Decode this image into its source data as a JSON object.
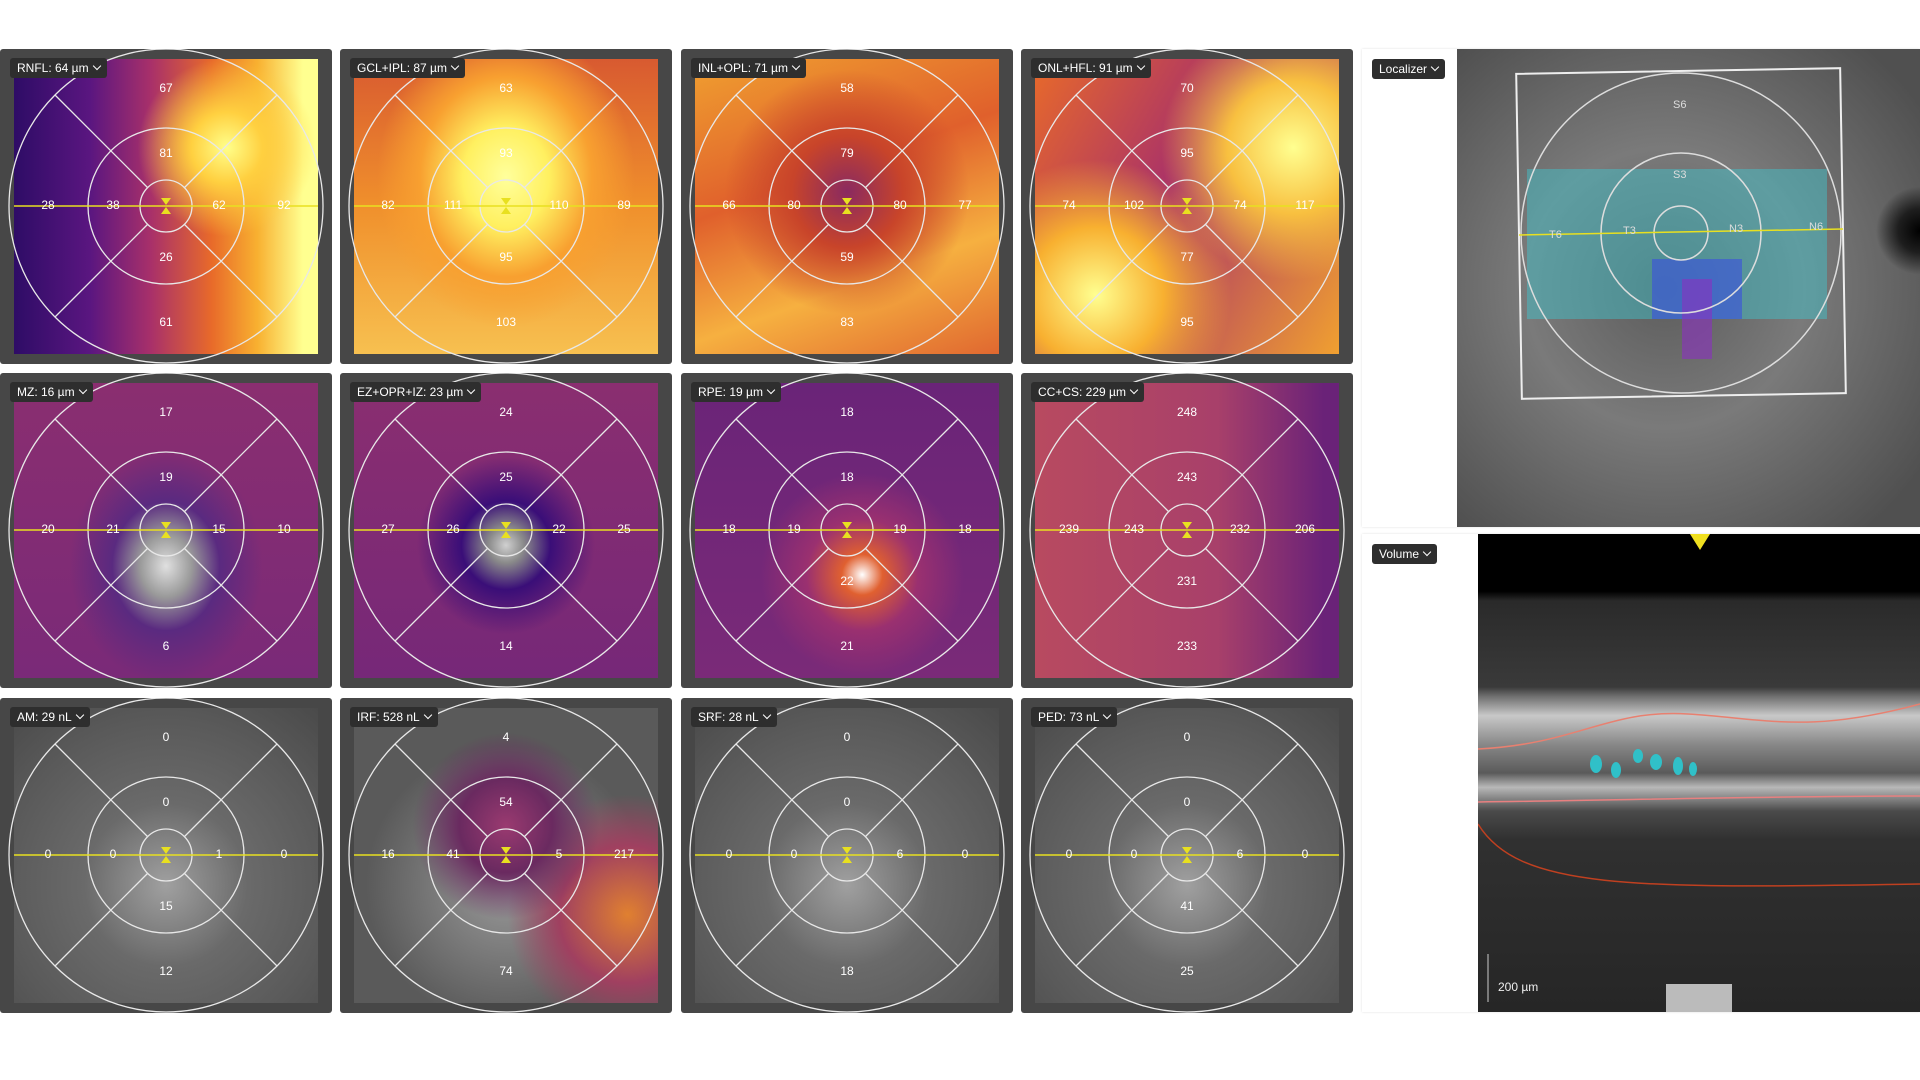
{
  "panels": [
    {
      "label": "RNFL: 64 µm",
      "sectors": {
        "top_outer": "67",
        "top_inner": "81",
        "left_outer": "28",
        "left_inner": "38",
        "right_inner": "62",
        "right_outer": "92",
        "bottom_inner": "26",
        "bottom_outer": "61"
      }
    },
    {
      "label": "GCL+IPL: 87 µm",
      "sectors": {
        "top_outer": "63",
        "top_inner": "93",
        "left_outer": "82",
        "left_inner": "111",
        "right_inner": "110",
        "right_outer": "89",
        "bottom_inner": "95",
        "bottom_outer": "103"
      }
    },
    {
      "label": "INL+OPL: 71 µm",
      "sectors": {
        "top_outer": "58",
        "top_inner": "79",
        "left_outer": "66",
        "left_inner": "80",
        "right_inner": "80",
        "right_outer": "77",
        "bottom_inner": "59",
        "bottom_outer": "83"
      }
    },
    {
      "label": "ONL+HFL: 91 µm",
      "sectors": {
        "top_outer": "70",
        "top_inner": "95",
        "left_outer": "74",
        "left_inner": "102",
        "right_inner": "74",
        "right_outer": "117",
        "bottom_inner": "77",
        "bottom_outer": "95"
      }
    },
    {
      "label": "MZ: 16 µm",
      "sectors": {
        "top_outer": "17",
        "top_inner": "19",
        "left_outer": "20",
        "left_inner": "21",
        "right_inner": "15",
        "right_outer": "10",
        "bottom_outer": "6"
      }
    },
    {
      "label": "EZ+OPR+IZ: 23 µm",
      "sectors": {
        "top_outer": "24",
        "top_inner": "25",
        "left_outer": "27",
        "left_inner": "26",
        "right_inner": "22",
        "right_outer": "25",
        "bottom_outer": "14"
      }
    },
    {
      "label": "RPE: 19 µm",
      "sectors": {
        "top_outer": "18",
        "top_inner": "18",
        "left_outer": "18",
        "left_inner": "19",
        "right_inner": "19",
        "right_outer": "18",
        "bottom_inner": "22",
        "bottom_outer": "21"
      }
    },
    {
      "label": "CC+CS: 229 µm",
      "sectors": {
        "top_outer": "248",
        "top_inner": "243",
        "left_outer": "239",
        "left_inner": "243",
        "right_inner": "232",
        "right_outer": "206",
        "bottom_inner": "231",
        "bottom_outer": "233"
      }
    },
    {
      "label": "AM: 29 nL",
      "sectors": {
        "top_outer": "0",
        "top_inner": "0",
        "left_outer": "0",
        "left_inner": "0",
        "right_inner": "1",
        "right_outer": "0",
        "bottom_inner": "15",
        "bottom_outer": "12"
      }
    },
    {
      "label": "IRF: 528 nL",
      "sectors": {
        "top_outer": "4",
        "top_inner": "54",
        "left_outer": "16",
        "left_inner": "41",
        "right_inner": "5",
        "right_outer": "217",
        "bottom_outer": "74"
      }
    },
    {
      "label": "SRF: 28 nL",
      "sectors": {
        "top_outer": "0",
        "top_inner": "0",
        "left_outer": "0",
        "left_inner": "0",
        "right_inner": "6",
        "right_outer": "0",
        "bottom_outer": "18"
      }
    },
    {
      "label": "PED: 73 nL",
      "sectors": {
        "top_outer": "0",
        "top_inner": "0",
        "left_outer": "0",
        "left_inner": "0",
        "right_inner": "6",
        "right_outer": "0",
        "bottom_inner": "41",
        "bottom_outer": "25"
      }
    }
  ],
  "localizer": {
    "button": "Localizer",
    "sector_labels": {
      "superior_outer": "S6",
      "superior_inner": "S3",
      "temporal_outer": "T6",
      "temporal_inner": "T3",
      "nasal_inner": "N3",
      "nasal_outer": "N6"
    }
  },
  "volume": {
    "button": "Volume",
    "scale": "200 µm"
  }
}
